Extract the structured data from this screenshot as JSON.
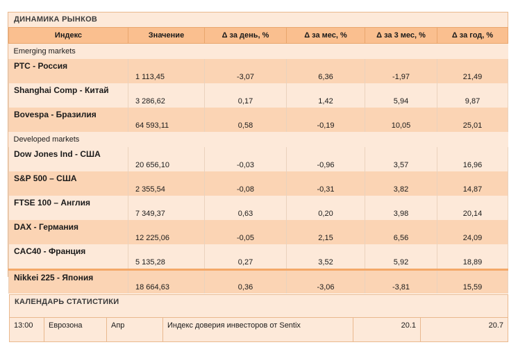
{
  "markets": {
    "title": "ДИНАМИКА  РЫНКОВ",
    "headers": [
      "Индекс",
      "Значение",
      "Δ за день, %",
      "Δ за мес, %",
      "Δ за 3 мес, %",
      "Δ за год, %"
    ],
    "sections": [
      {
        "label": "Emerging markets",
        "rows": [
          [
            "РТС - Россия",
            "1 113,45",
            "-3,07",
            "6,36",
            "-1,97",
            "21,49"
          ],
          [
            "Shanghai Comp - Китай",
            "3 286,62",
            "0,17",
            "1,42",
            "5,94",
            "9,87"
          ],
          [
            "Bovespa - Бразилия",
            "64 593,11",
            "0,58",
            "-0,19",
            "10,05",
            "25,01"
          ]
        ]
      },
      {
        "label": "Developed markets",
        "rows": [
          [
            "Dow Jones Ind - США",
            "20 656,10",
            "-0,03",
            "-0,96",
            "3,57",
            "16,96"
          ],
          [
            "S&P 500  – США",
            "2 355,54",
            "-0,08",
            "-0,31",
            "3,82",
            "14,87"
          ],
          [
            "FTSE 100  – Англия",
            "7 349,37",
            "0,63",
            "0,20",
            "3,98",
            "20,14"
          ],
          [
            "DAX - Германия",
            "12 225,06",
            "-0,05",
            "2,15",
            "6,56",
            "24,09"
          ],
          [
            "CAC40 - Франция",
            "5 135,28",
            "0,27",
            "3,52",
            "5,92",
            "18,89"
          ],
          [
            "Nikkei 225 - Япония",
            "18 664,63",
            "0,36",
            "-3,06",
            "-3,81",
            "15,59"
          ]
        ]
      }
    ]
  },
  "calendar": {
    "title": "КАЛЕНДАРЬ  СТАТИСТИКИ",
    "rows": [
      {
        "time": "13:00",
        "region": "Еврозона",
        "period": "Апр",
        "indicator": "Индекс доверия инвесторов от Sentix",
        "forecast": "20.1",
        "previous": "20.7"
      }
    ]
  }
}
